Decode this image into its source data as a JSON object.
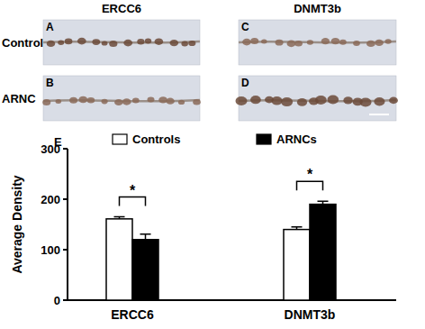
{
  "micrographs": {
    "columns": [
      "ERCC6",
      "DNMT3b"
    ],
    "rows": [
      "Control",
      "ARNC"
    ],
    "panels": [
      "A",
      "B",
      "C",
      "D"
    ]
  },
  "chart_data": {
    "type": "bar",
    "title": "E",
    "y_label": "Average Density",
    "categories": [
      "ERCC6",
      "DNMT3b"
    ],
    "series": [
      {
        "name": "Controls",
        "color": "#ffffff",
        "values": [
          161,
          140
        ],
        "errors": [
          4,
          5
        ]
      },
      {
        "name": "ARNCs",
        "color": "#000000",
        "values": [
          120,
          190
        ],
        "errors": [
          11,
          6
        ]
      }
    ],
    "significance": [
      "*",
      "*"
    ],
    "ylim": [
      0,
      300
    ],
    "yticks": [
      0,
      100,
      200,
      300
    ],
    "grid": false,
    "legend": "top"
  }
}
